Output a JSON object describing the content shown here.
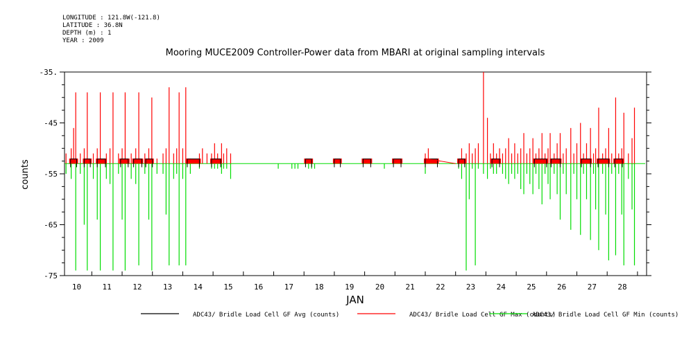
{
  "header": {
    "meta_lines": [
      "LONGITUDE : 121.8W(-121.8)",
      "LATITUDE : 36.8N",
      "DEPTH (m) : 1",
      "YEAR : 2009"
    ]
  },
  "chart_data": {
    "type": "line",
    "title": "Mooring MUCE2009 Controller-Power data from MBARI at original sampling intervals",
    "xlabel": "JAN",
    "ylabel": "counts",
    "xlim": [
      9.6,
      28.8
    ],
    "ylim": [
      -75,
      -35
    ],
    "yticks": [
      -35,
      -45,
      -55,
      -65,
      -75
    ],
    "xticks": [
      10,
      11,
      12,
      13,
      14,
      15,
      16,
      17,
      18,
      19,
      20,
      21,
      22,
      23,
      24,
      25,
      26,
      27,
      28
    ],
    "baseline": -53,
    "colors": {
      "avg": "#000000",
      "max": "#ff0000",
      "min": "#00dd00"
    },
    "series": [
      {
        "name": "ADC43/ Bridle Load Cell GF Avg (counts)",
        "color": "#000000"
      },
      {
        "name": "ADC43/ Bridle Load Cell GF Max (counts)",
        "color": "#ff0000"
      },
      {
        "name": "ADC43/ Bridle Load Cell GF Min (counts)",
        "color": "#00dd00"
      }
    ],
    "max_spikes": [
      [
        9.65,
        -51
      ],
      [
        9.82,
        -50
      ],
      [
        9.9,
        -46
      ],
      [
        9.97,
        -39
      ],
      [
        10.12,
        -51
      ],
      [
        10.25,
        -50
      ],
      [
        10.35,
        -39
      ],
      [
        10.55,
        -51
      ],
      [
        10.68,
        -50
      ],
      [
        10.78,
        -39
      ],
      [
        10.98,
        -51
      ],
      [
        11.1,
        -50
      ],
      [
        11.2,
        -39
      ],
      [
        11.38,
        -51
      ],
      [
        11.5,
        -50
      ],
      [
        11.6,
        -39
      ],
      [
        11.8,
        -51
      ],
      [
        11.95,
        -50
      ],
      [
        12.05,
        -39
      ],
      [
        12.25,
        -51
      ],
      [
        12.38,
        -50
      ],
      [
        12.48,
        -40
      ],
      [
        12.65,
        -52
      ],
      [
        12.85,
        -51
      ],
      [
        12.95,
        -50
      ],
      [
        13.05,
        -38
      ],
      [
        13.2,
        -51
      ],
      [
        13.3,
        -50
      ],
      [
        13.38,
        -39
      ],
      [
        13.5,
        -50
      ],
      [
        13.6,
        -38
      ],
      [
        13.75,
        -52
      ],
      [
        14.05,
        -51
      ],
      [
        14.15,
        -50
      ],
      [
        14.3,
        -51
      ],
      [
        14.45,
        -51
      ],
      [
        14.55,
        -49
      ],
      [
        14.65,
        -51
      ],
      [
        14.78,
        -49
      ],
      [
        14.85,
        -51
      ],
      [
        14.95,
        -50
      ],
      [
        15.08,
        -51
      ],
      [
        21.5,
        -51
      ],
      [
        21.6,
        -50
      ],
      [
        22.6,
        -52
      ],
      [
        22.7,
        -50
      ],
      [
        22.85,
        -51
      ],
      [
        22.95,
        -49
      ],
      [
        23.05,
        -51
      ],
      [
        23.15,
        -50
      ],
      [
        23.25,
        -49
      ],
      [
        23.42,
        -35
      ],
      [
        23.55,
        -44
      ],
      [
        23.65,
        -51
      ],
      [
        23.75,
        -49
      ],
      [
        23.85,
        -51
      ],
      [
        23.95,
        -50
      ],
      [
        24.05,
        -51
      ],
      [
        24.15,
        -50
      ],
      [
        24.25,
        -48
      ],
      [
        24.35,
        -51
      ],
      [
        24.45,
        -49
      ],
      [
        24.55,
        -51
      ],
      [
        24.65,
        -50
      ],
      [
        24.75,
        -47
      ],
      [
        24.85,
        -51
      ],
      [
        24.95,
        -50
      ],
      [
        25.05,
        -48
      ],
      [
        25.15,
        -51
      ],
      [
        25.25,
        -50
      ],
      [
        25.35,
        -47
      ],
      [
        25.45,
        -51
      ],
      [
        25.55,
        -50
      ],
      [
        25.62,
        -47
      ],
      [
        25.75,
        -51
      ],
      [
        25.85,
        -49
      ],
      [
        25.95,
        -47
      ],
      [
        26.05,
        -51
      ],
      [
        26.15,
        -50
      ],
      [
        26.3,
        -46
      ],
      [
        26.4,
        -51
      ],
      [
        26.5,
        -49
      ],
      [
        26.62,
        -45
      ],
      [
        26.72,
        -51
      ],
      [
        26.82,
        -49
      ],
      [
        26.95,
        -46
      ],
      [
        27.05,
        -51
      ],
      [
        27.12,
        -50
      ],
      [
        27.22,
        -42
      ],
      [
        27.35,
        -51
      ],
      [
        27.45,
        -50
      ],
      [
        27.55,
        -46
      ],
      [
        27.65,
        -51
      ],
      [
        27.78,
        -40
      ],
      [
        27.88,
        -51
      ],
      [
        27.98,
        -50
      ],
      [
        28.05,
        -43
      ],
      [
        28.2,
        -51
      ],
      [
        28.32,
        -48
      ],
      [
        28.4,
        -42
      ]
    ],
    "min_spikes": [
      [
        9.65,
        -55
      ],
      [
        9.82,
        -56
      ],
      [
        9.97,
        -74
      ],
      [
        10.12,
        -55
      ],
      [
        10.25,
        -65
      ],
      [
        10.35,
        -74
      ],
      [
        10.55,
        -56
      ],
      [
        10.68,
        -64
      ],
      [
        10.78,
        -74
      ],
      [
        10.98,
        -56
      ],
      [
        11.1,
        -57
      ],
      [
        11.2,
        -74
      ],
      [
        11.38,
        -55
      ],
      [
        11.5,
        -64
      ],
      [
        11.6,
        -74
      ],
      [
        11.8,
        -56
      ],
      [
        11.95,
        -57
      ],
      [
        12.05,
        -73
      ],
      [
        12.25,
        -55
      ],
      [
        12.38,
        -64
      ],
      [
        12.48,
        -74
      ],
      [
        12.65,
        -55
      ],
      [
        12.85,
        -55
      ],
      [
        12.95,
        -63
      ],
      [
        13.05,
        -73
      ],
      [
        13.2,
        -56
      ],
      [
        13.3,
        -55
      ],
      [
        13.38,
        -73
      ],
      [
        13.5,
        -56
      ],
      [
        13.6,
        -73
      ],
      [
        13.75,
        -55
      ],
      [
        14.05,
        -54
      ],
      [
        14.45,
        -54
      ],
      [
        14.55,
        -54
      ],
      [
        14.65,
        -54
      ],
      [
        14.78,
        -55
      ],
      [
        14.85,
        -54
      ],
      [
        14.95,
        -54
      ],
      [
        15.08,
        -56
      ],
      [
        16.65,
        -54
      ],
      [
        17.1,
        -54
      ],
      [
        17.2,
        -54
      ],
      [
        17.3,
        -54
      ],
      [
        17.65,
        -54
      ],
      [
        17.75,
        -54
      ],
      [
        17.85,
        -54
      ],
      [
        20.15,
        -54
      ],
      [
        21.5,
        -55
      ],
      [
        22.6,
        -54
      ],
      [
        22.7,
        -56
      ],
      [
        22.85,
        -74
      ],
      [
        22.95,
        -60
      ],
      [
        23.05,
        -54
      ],
      [
        23.15,
        -73
      ],
      [
        23.25,
        -54
      ],
      [
        23.42,
        -55
      ],
      [
        23.55,
        -56
      ],
      [
        23.65,
        -54
      ],
      [
        23.75,
        -55
      ],
      [
        23.85,
        -55
      ],
      [
        24.05,
        -55
      ],
      [
        24.15,
        -56
      ],
      [
        24.25,
        -57
      ],
      [
        24.35,
        -55
      ],
      [
        24.45,
        -56
      ],
      [
        24.55,
        -55
      ],
      [
        24.65,
        -58
      ],
      [
        24.75,
        -59
      ],
      [
        24.85,
        -55
      ],
      [
        24.95,
        -57
      ],
      [
        25.05,
        -59
      ],
      [
        25.15,
        -55
      ],
      [
        25.25,
        -58
      ],
      [
        25.35,
        -61
      ],
      [
        25.45,
        -55
      ],
      [
        25.55,
        -57
      ],
      [
        25.62,
        -60
      ],
      [
        25.75,
        -55
      ],
      [
        25.85,
        -59
      ],
      [
        25.95,
        -64
      ],
      [
        26.05,
        -55
      ],
      [
        26.15,
        -59
      ],
      [
        26.3,
        -66
      ],
      [
        26.4,
        -55
      ],
      [
        26.5,
        -60
      ],
      [
        26.62,
        -67
      ],
      [
        26.72,
        -55
      ],
      [
        26.82,
        -60
      ],
      [
        26.95,
        -68
      ],
      [
        27.05,
        -55
      ],
      [
        27.12,
        -62
      ],
      [
        27.22,
        -70
      ],
      [
        27.35,
        -55
      ],
      [
        27.45,
        -63
      ],
      [
        27.55,
        -72
      ],
      [
        27.65,
        -55
      ],
      [
        27.78,
        -71
      ],
      [
        27.88,
        -55
      ],
      [
        27.98,
        -63
      ],
      [
        28.05,
        -73
      ],
      [
        28.2,
        -56
      ],
      [
        28.32,
        -62
      ],
      [
        28.4,
        -73
      ]
    ],
    "avg_boxes": [
      [
        9.8,
        10.0
      ],
      [
        10.25,
        10.45
      ],
      [
        10.68,
        10.95
      ],
      [
        11.45,
        11.7
      ],
      [
        11.88,
        12.15
      ],
      [
        12.28,
        12.5
      ],
      [
        13.65,
        14.05
      ],
      [
        14.45,
        14.75
      ],
      [
        17.55,
        17.75
      ],
      [
        18.5,
        18.7
      ],
      [
        19.45,
        19.7
      ],
      [
        20.45,
        20.7
      ],
      [
        21.5,
        21.9
      ],
      [
        22.6,
        22.8
      ],
      [
        23.7,
        23.95
      ],
      [
        25.1,
        25.5
      ],
      [
        25.65,
        25.95
      ],
      [
        26.65,
        26.95
      ],
      [
        27.2,
        27.55
      ],
      [
        27.75,
        28.0
      ]
    ]
  }
}
